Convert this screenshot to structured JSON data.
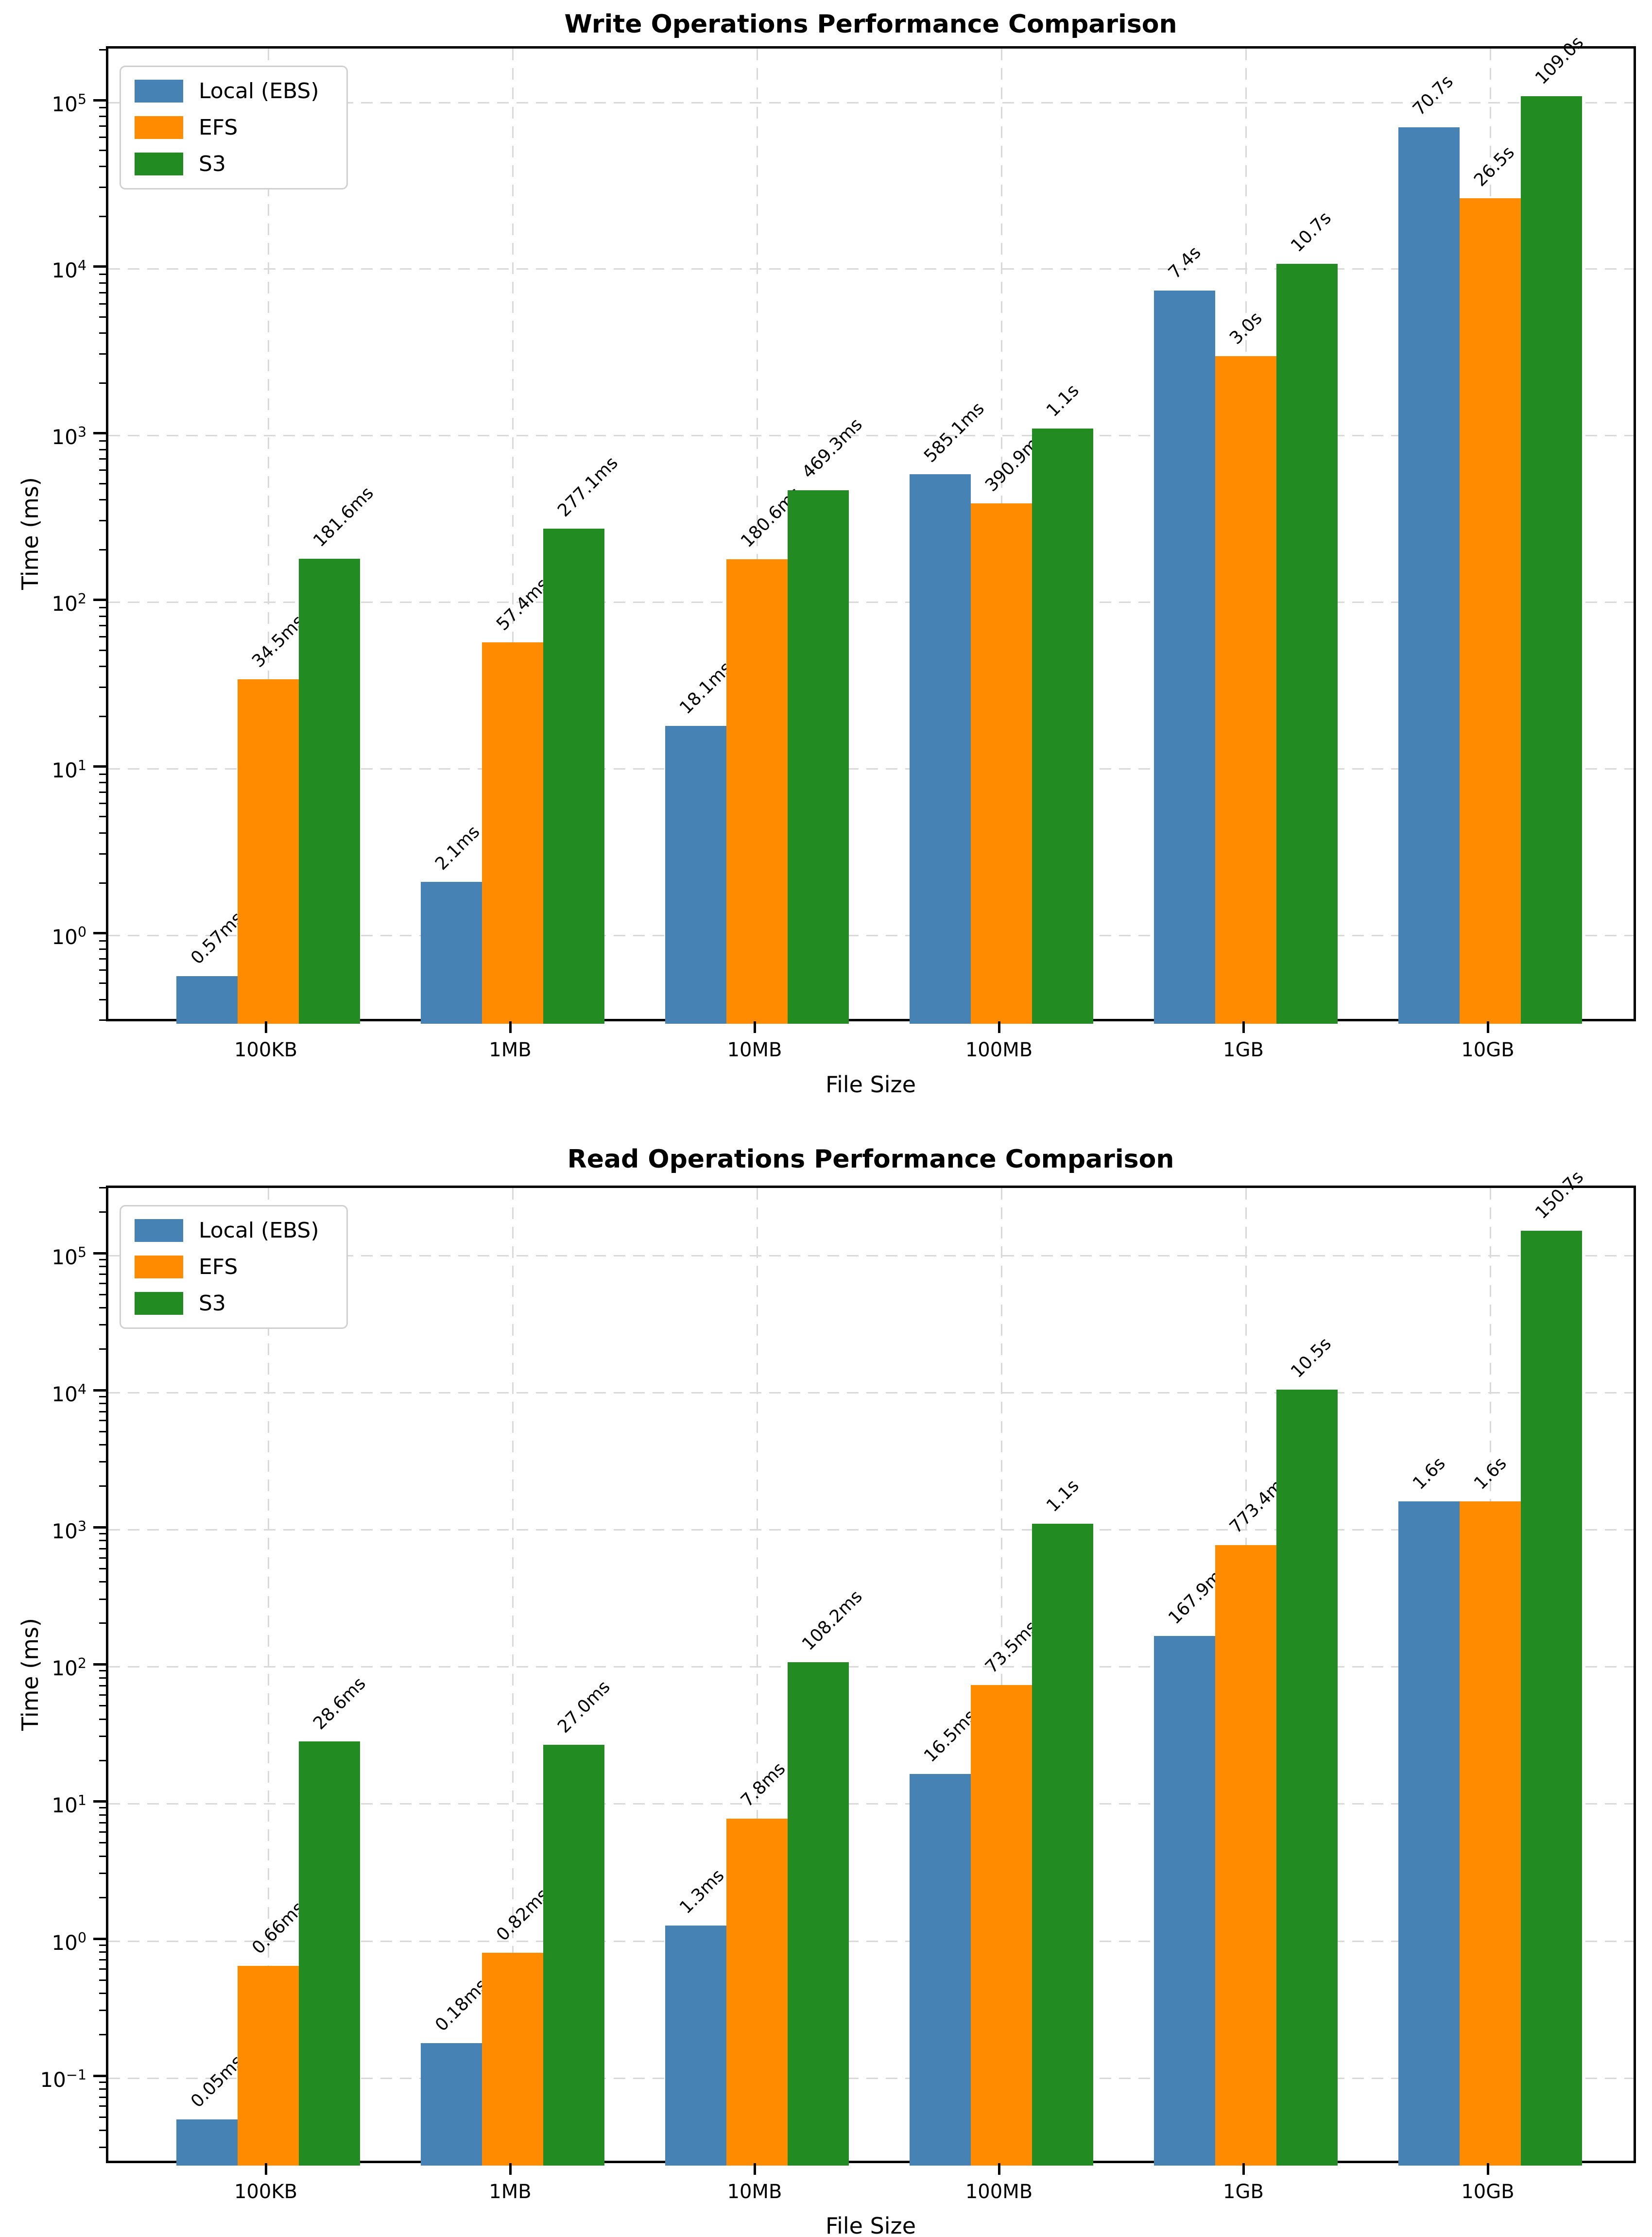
{
  "chart_data": [
    {
      "type": "bar",
      "yscale": "log",
      "grid": true,
      "legend_position": "upper left",
      "title": "Write Operations Performance Comparison",
      "xlabel": "File Size",
      "ylabel": "Time (ms)",
      "categories": [
        "100KB",
        "1MB",
        "10MB",
        "100MB",
        "1GB",
        "10GB"
      ],
      "y_tick_exponents": [
        0,
        1,
        2,
        3,
        4,
        5
      ],
      "ylim": [
        0.295,
        210000
      ],
      "series": [
        {
          "name": "Local (EBS)",
          "color": "#4682b4",
          "values": [
            0.57,
            2.1,
            18.1,
            585.1,
            7400,
            70700
          ],
          "labels": [
            "0.57ms",
            "2.1ms",
            "18.1ms",
            "585.1ms",
            "7.4s",
            "70.7s"
          ]
        },
        {
          "name": "EFS",
          "color": "#ff8c00",
          "values": [
            34.5,
            57.4,
            180.6,
            390.9,
            3000,
            26500
          ],
          "labels": [
            "34.5ms",
            "57.4ms",
            "180.6ms",
            "390.9ms",
            "3.0s",
            "26.5s"
          ]
        },
        {
          "name": "S3",
          "color": "#228b22",
          "values": [
            181.6,
            277.1,
            469.3,
            1100,
            10700,
            109000
          ],
          "labels": [
            "181.6ms",
            "277.1ms",
            "469.3ms",
            "1.1s",
            "10.7s",
            "109.0s"
          ]
        }
      ]
    },
    {
      "type": "bar",
      "yscale": "log",
      "grid": true,
      "legend_position": "upper left",
      "title": "Read Operations Performance Comparison",
      "xlabel": "File Size",
      "ylabel": "Time (ms)",
      "categories": [
        "100KB",
        "1MB",
        "10MB",
        "100MB",
        "1GB",
        "10GB"
      ],
      "y_tick_exponents": [
        -1,
        0,
        1,
        2,
        3,
        4,
        5
      ],
      "ylim": [
        0.023,
        310000
      ],
      "series": [
        {
          "name": "Local (EBS)",
          "color": "#4682b4",
          "values": [
            0.05,
            0.18,
            1.3,
            16.5,
            167.9,
            1600
          ],
          "labels": [
            "0.05ms",
            "0.18ms",
            "1.3ms",
            "16.5ms",
            "167.9ms",
            "1.6s"
          ]
        },
        {
          "name": "EFS",
          "color": "#ff8c00",
          "values": [
            0.66,
            0.82,
            7.8,
            73.5,
            773.4,
            1600
          ],
          "labels": [
            "0.66ms",
            "0.82ms",
            "7.8ms",
            "73.5ms",
            "773.4ms",
            "1.6s"
          ]
        },
        {
          "name": "S3",
          "color": "#228b22",
          "values": [
            28.6,
            27.0,
            108.2,
            1100,
            10500,
            150700
          ],
          "labels": [
            "28.6ms",
            "27.0ms",
            "108.2ms",
            "1.1s",
            "10.5s",
            "150.7s"
          ]
        }
      ]
    }
  ]
}
